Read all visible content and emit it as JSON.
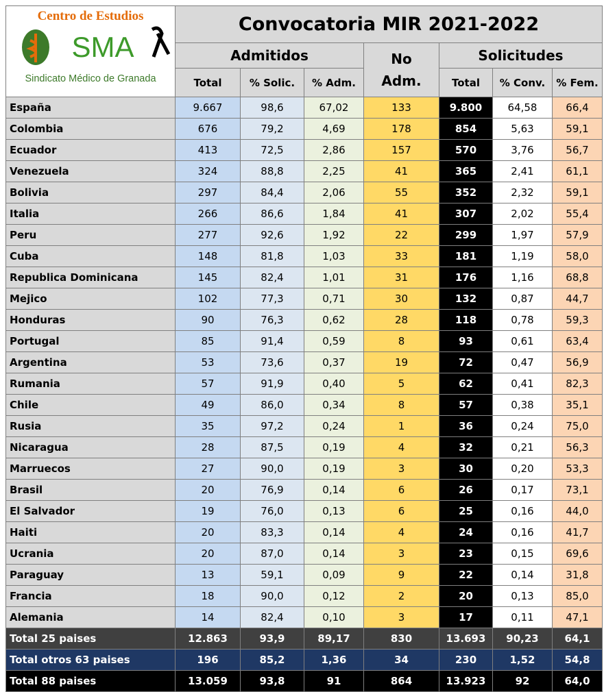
{
  "logo": {
    "line1": "Centro de Estudios",
    "brand": "SMA",
    "line2": "Sindicato Médico de Granada"
  },
  "table": {
    "title": "Convocatoria MIR 2021-2022",
    "groups": {
      "admitidos": "Admitidos",
      "no_adm": [
        "No",
        "Adm."
      ],
      "solicitudes": "Solicitudes"
    },
    "columns": [
      "Total",
      "% Solic.",
      "% Adm.",
      "Total",
      "% Conv.",
      "% Fem."
    ],
    "rows": [
      [
        "España",
        "9.667",
        "98,6",
        "67,02",
        "133",
        "9.800",
        "64,58",
        "66,4"
      ],
      [
        "Colombia",
        "676",
        "79,2",
        "4,69",
        "178",
        "854",
        "5,63",
        "59,1"
      ],
      [
        "Ecuador",
        "413",
        "72,5",
        "2,86",
        "157",
        "570",
        "3,76",
        "56,7"
      ],
      [
        "Venezuela",
        "324",
        "88,8",
        "2,25",
        "41",
        "365",
        "2,41",
        "61,1"
      ],
      [
        "Bolivia",
        "297",
        "84,4",
        "2,06",
        "55",
        "352",
        "2,32",
        "59,1"
      ],
      [
        "Italia",
        "266",
        "86,6",
        "1,84",
        "41",
        "307",
        "2,02",
        "55,4"
      ],
      [
        "Peru",
        "277",
        "92,6",
        "1,92",
        "22",
        "299",
        "1,97",
        "57,9"
      ],
      [
        "Cuba",
        "148",
        "81,8",
        "1,03",
        "33",
        "181",
        "1,19",
        "58,0"
      ],
      [
        "Republica Dominicana",
        "145",
        "82,4",
        "1,01",
        "31",
        "176",
        "1,16",
        "68,8"
      ],
      [
        "Mejico",
        "102",
        "77,3",
        "0,71",
        "30",
        "132",
        "0,87",
        "44,7"
      ],
      [
        "Honduras",
        "90",
        "76,3",
        "0,62",
        "28",
        "118",
        "0,78",
        "59,3"
      ],
      [
        "Portugal",
        "85",
        "91,4",
        "0,59",
        "8",
        "93",
        "0,61",
        "63,4"
      ],
      [
        "Argentina",
        "53",
        "73,6",
        "0,37",
        "19",
        "72",
        "0,47",
        "56,9"
      ],
      [
        "Rumania",
        "57",
        "91,9",
        "0,40",
        "5",
        "62",
        "0,41",
        "82,3"
      ],
      [
        "Chile",
        "49",
        "86,0",
        "0,34",
        "8",
        "57",
        "0,38",
        "35,1"
      ],
      [
        "Rusia",
        "35",
        "97,2",
        "0,24",
        "1",
        "36",
        "0,24",
        "75,0"
      ],
      [
        "Nicaragua",
        "28",
        "87,5",
        "0,19",
        "4",
        "32",
        "0,21",
        "56,3"
      ],
      [
        "Marruecos",
        "27",
        "90,0",
        "0,19",
        "3",
        "30",
        "0,20",
        "53,3"
      ],
      [
        "Brasil",
        "20",
        "76,9",
        "0,14",
        "6",
        "26",
        "0,17",
        "73,1"
      ],
      [
        "El Salvador",
        "19",
        "76,0",
        "0,13",
        "6",
        "25",
        "0,16",
        "44,0"
      ],
      [
        "Haiti",
        "20",
        "83,3",
        "0,14",
        "4",
        "24",
        "0,16",
        "41,7"
      ],
      [
        "Ucrania",
        "20",
        "87,0",
        "0,14",
        "3",
        "23",
        "0,15",
        "69,6"
      ],
      [
        "Paraguay",
        "13",
        "59,1",
        "0,09",
        "9",
        "22",
        "0,14",
        "31,8"
      ],
      [
        "Francia",
        "18",
        "90,0",
        "0,12",
        "2",
        "20",
        "0,13",
        "85,0"
      ],
      [
        "Alemania",
        "14",
        "82,4",
        "0,10",
        "3",
        "17",
        "0,11",
        "47,1"
      ]
    ],
    "totals": [
      [
        "Total 25 paises",
        "12.863",
        "93,9",
        "89,17",
        "830",
        "13.693",
        "90,23",
        "64,1"
      ],
      [
        "Total otros 63 paises",
        "196",
        "85,2",
        "1,36",
        "34",
        "230",
        "1,52",
        "54,8"
      ],
      [
        "Total 88 paises",
        "13.059",
        "93,8",
        "91",
        "864",
        "13.923",
        "92",
        "64,0"
      ]
    ]
  }
}
